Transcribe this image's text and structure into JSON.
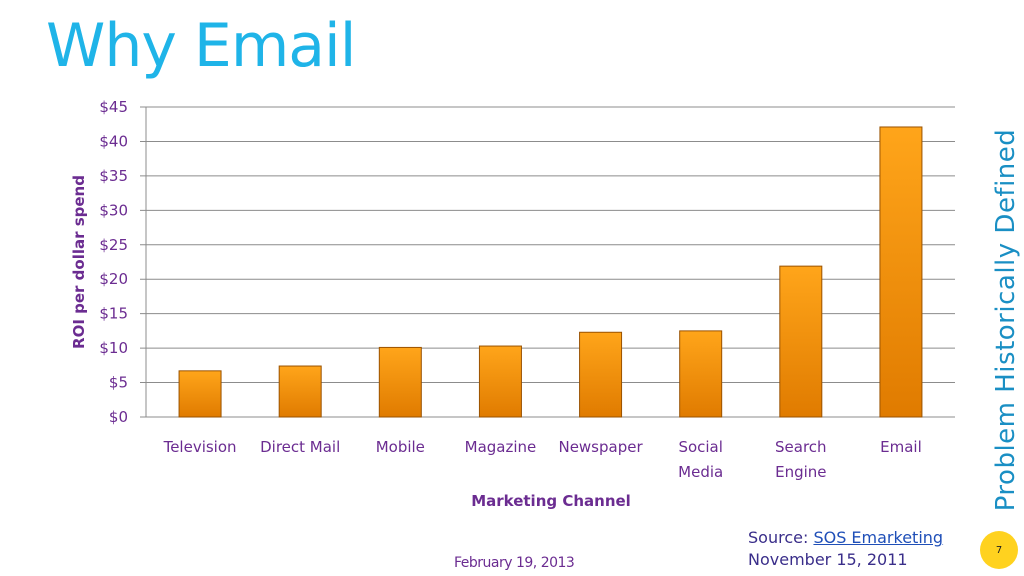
{
  "slide": {
    "title": "Why Email",
    "side_title": "Problem Historically Defined",
    "source_label": "Source:",
    "source_link": "SOS Emarketing",
    "source_date": "November 15, 2011",
    "footer_date": "February 19, 2013",
    "page_number": "7"
  },
  "colors": {
    "title": "#1fb4e8",
    "bar_light": "#ffa51a",
    "bar_dark": "#e07b00",
    "text": "#6b2c91",
    "page_badge": "#ffd21f"
  },
  "chart_data": {
    "type": "bar",
    "categories": [
      [
        "Television"
      ],
      [
        "Direct Mail"
      ],
      [
        "Mobile"
      ],
      [
        "Magazine"
      ],
      [
        "Newspaper"
      ],
      [
        "Social",
        "Media"
      ],
      [
        "Search",
        "Engine"
      ],
      [
        "Email"
      ]
    ],
    "values": [
      6.7,
      7.4,
      10.1,
      10.3,
      12.3,
      12.5,
      21.9,
      42.1
    ],
    "xlabel": "Marketing Channel",
    "ylabel": "ROI per dollar spend",
    "ylim": [
      0,
      45
    ],
    "yticks": [
      "$0",
      "$5",
      "$10",
      "$15",
      "$20",
      "$25",
      "$30",
      "$35",
      "$40",
      "$45"
    ],
    "grid": true,
    "legend": "none"
  }
}
